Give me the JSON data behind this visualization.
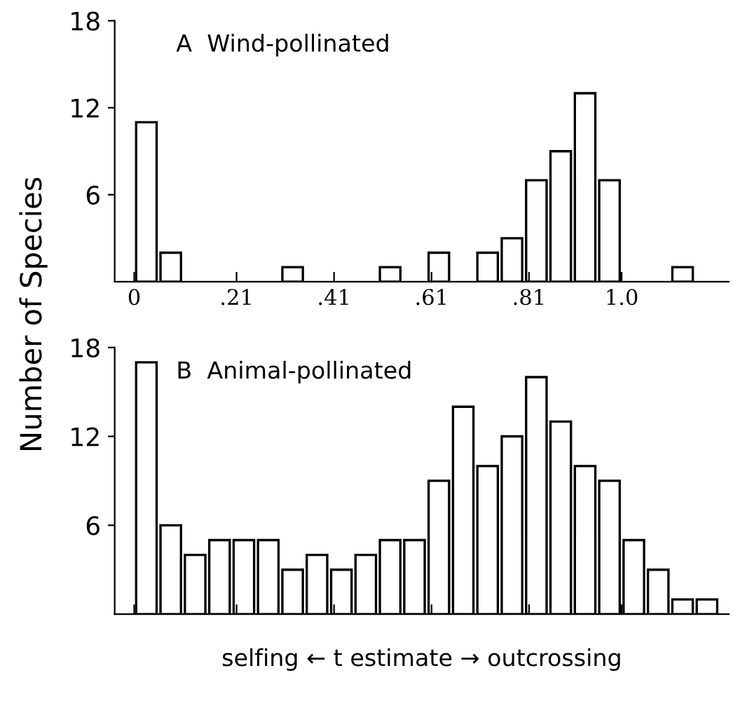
{
  "chart_data": [
    {
      "type": "histogram",
      "title": "A  Wind-pollinated",
      "ylabel": "Number of Species",
      "bins": [
        0,
        0.05,
        0.1,
        0.15,
        0.2,
        0.25,
        0.3,
        0.35,
        0.4,
        0.45,
        0.5,
        0.55,
        0.6,
        0.65,
        0.7,
        0.75,
        0.8,
        0.85,
        0.9,
        0.95,
        1.0,
        1.05,
        1.1,
        1.15,
        1.2
      ],
      "values": [
        11,
        2,
        0,
        0,
        0,
        0,
        1,
        0,
        0,
        0,
        1,
        0,
        2,
        0,
        2,
        3,
        7,
        9,
        13,
        7,
        0,
        0,
        1,
        0
      ],
      "color": "#ffffff",
      "xlim": [
        -0.04,
        1.22
      ],
      "ylim": [
        0,
        18
      ],
      "yticks": [
        6,
        12,
        18
      ],
      "xticks": [
        0,
        {
          "value": 0.21,
          "label": ".21"
        },
        {
          "value": 0.41,
          "label": ".41"
        },
        {
          "value": 0.61,
          "label": ".61"
        },
        {
          "value": 0.81,
          "label": ".81"
        },
        {
          "value": 1.0,
          "label": "1.0"
        }
      ],
      "grid": false,
      "legend": false
    },
    {
      "type": "histogram",
      "title": "B  Animal-pollinated",
      "xlabel": "selfing ← t estimate → outcrossing",
      "bins": [
        0,
        0.05,
        0.1,
        0.15,
        0.2,
        0.25,
        0.3,
        0.35,
        0.4,
        0.45,
        0.5,
        0.55,
        0.6,
        0.65,
        0.7,
        0.75,
        0.8,
        0.85,
        0.9,
        0.95,
        1.0,
        1.05,
        1.1,
        1.15,
        1.2
      ],
      "values": [
        17,
        6,
        4,
        5,
        5,
        5,
        3,
        4,
        3,
        4,
        5,
        5,
        9,
        14,
        10,
        12,
        16,
        13,
        10,
        9,
        5,
        3,
        1,
        1
      ],
      "color": "#ffffff",
      "xlim": [
        -0.04,
        1.22
      ],
      "ylim": [
        0,
        18
      ],
      "yticks": [
        6,
        12,
        18
      ],
      "xticks": [
        {
          "value": 0,
          "label": null
        },
        {
          "value": 0.21,
          "label": null
        },
        {
          "value": 0.41,
          "label": null
        },
        {
          "value": 0.61,
          "label": null
        },
        {
          "value": 0.81,
          "label": null
        },
        {
          "value": 1.0,
          "label": null
        }
      ],
      "tick_labels": "y",
      "grid": false,
      "legend": false
    }
  ]
}
